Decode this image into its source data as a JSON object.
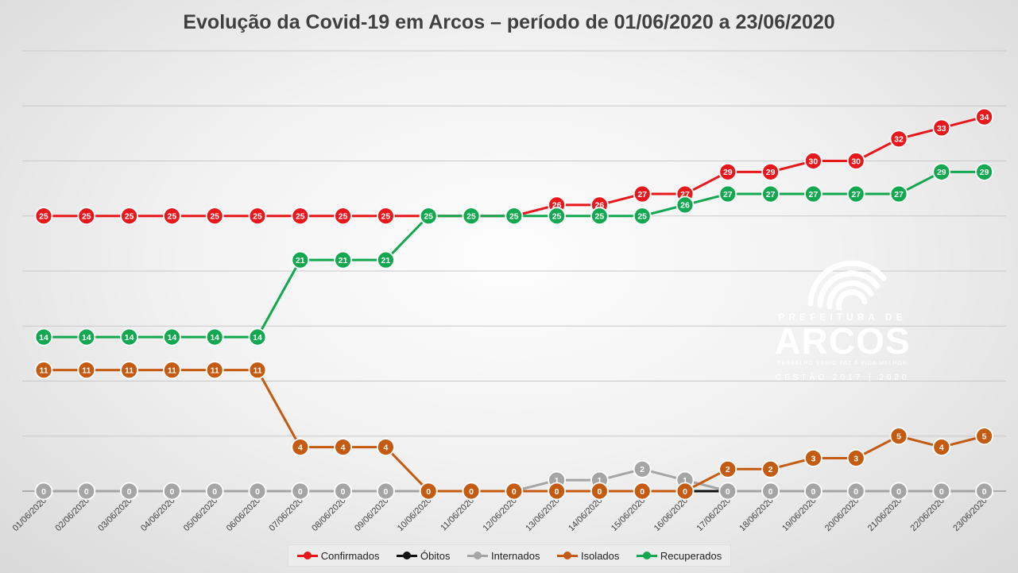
{
  "title": "Evolução da Covid-19 em Arcos – período de 01/06/2020 a 23/06/2020",
  "logo": {
    "top": "PREFEITURA DE",
    "name": "ARCOS",
    "tagline": "TRABALHO SÉRIO FAZ A VIDA MELHOR",
    "gestao": "GESTÃO 2017 | 2020"
  },
  "chart_data": {
    "type": "line",
    "title": "Evolução da Covid-19 em Arcos – período de 01/06/2020 a 23/06/2020",
    "xlabel": "",
    "ylabel": "",
    "ylim": [
      0,
      40
    ],
    "grid": true,
    "legend_position": "bottom",
    "categories": [
      "01/06/2020",
      "02/06/2020",
      "03/06/2020",
      "04/06/2020",
      "05/06/2020",
      "06/06/2020",
      "07/06/2020",
      "08/06/2020",
      "09/06/2020",
      "10/06/2020",
      "11/06/2020",
      "12/06/2020",
      "13/06/2020",
      "14/06/2020",
      "15/06/2020",
      "16/06/2020",
      "17/06/2020",
      "18/06/2020",
      "19/06/2020",
      "20/06/2020",
      "21/06/2020",
      "22/06/2020",
      "23/06/2020"
    ],
    "series": [
      {
        "name": "Confirmados",
        "color": "#e8171b",
        "values": [
          25,
          25,
          25,
          25,
          25,
          25,
          25,
          25,
          25,
          25,
          25,
          25,
          26,
          26,
          27,
          27,
          29,
          29,
          30,
          30,
          32,
          33,
          34
        ]
      },
      {
        "name": "Óbitos",
        "color": "#111111",
        "values": [
          0,
          0,
          0,
          0,
          0,
          0,
          0,
          0,
          0,
          0,
          0,
          0,
          0,
          0,
          0,
          0,
          0,
          0,
          0,
          0,
          0,
          0,
          0
        ]
      },
      {
        "name": "Internados",
        "color": "#a5a5a5",
        "values": [
          0,
          0,
          0,
          0,
          0,
          0,
          0,
          0,
          0,
          0,
          0,
          0,
          1,
          1,
          2,
          1,
          0,
          0,
          0,
          0,
          0,
          0,
          0
        ]
      },
      {
        "name": "Isolados",
        "color": "#c55a11",
        "values": [
          11,
          11,
          11,
          11,
          11,
          11,
          4,
          4,
          4,
          0,
          0,
          0,
          0,
          0,
          0,
          0,
          2,
          2,
          3,
          3,
          5,
          4,
          5
        ]
      },
      {
        "name": "Recuperados",
        "color": "#12a84f",
        "values": [
          14,
          14,
          14,
          14,
          14,
          14,
          21,
          21,
          21,
          25,
          25,
          25,
          25,
          25,
          25,
          26,
          27,
          27,
          27,
          27,
          27,
          29,
          29
        ]
      }
    ]
  }
}
